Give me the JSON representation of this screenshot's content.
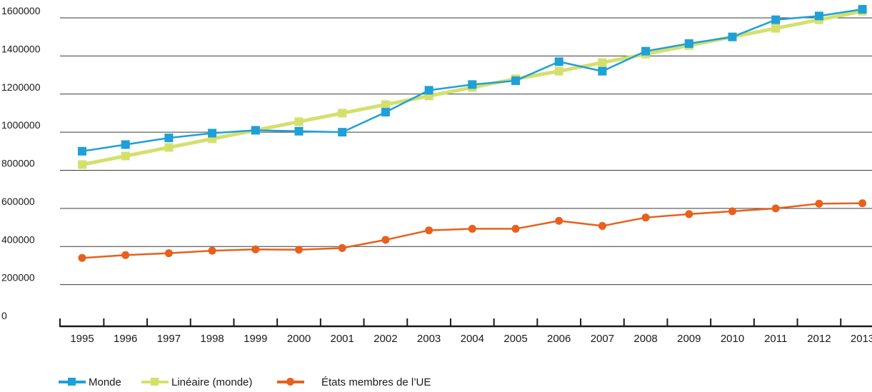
{
  "chart_data": {
    "type": "line",
    "categories": [
      "1995",
      "1996",
      "1997",
      "1998",
      "1999",
      "2000",
      "2001",
      "2002",
      "2003",
      "2004",
      "2005",
      "2006",
      "2007",
      "2008",
      "2009",
      "2010",
      "2011",
      "2012",
      "2013"
    ],
    "ylim": [
      0,
      1600000
    ],
    "yticks": [
      "0",
      "200000",
      "400000",
      "600000",
      "800000",
      "1000000",
      "1200000",
      "1400000",
      "1600000"
    ],
    "grid": true,
    "legend_position": "bottom-left",
    "series": [
      {
        "name": "Linéaire (monde)",
        "color": "#d4e06c",
        "marker": "square",
        "values": [
          830000,
          875000,
          920000,
          965000,
          1010000,
          1055000,
          1100000,
          1145000,
          1190000,
          1235000,
          1280000,
          1320000,
          1365000,
          1410000,
          1455000,
          1500000,
          1545000,
          1590000,
          1635000
        ]
      },
      {
        "name": "Monde",
        "color": "#1fa0d6",
        "marker": "square",
        "values": [
          900000,
          935000,
          970000,
          995000,
          1010000,
          1005000,
          1000000,
          1105000,
          1220000,
          1250000,
          1270000,
          1370000,
          1320000,
          1425000,
          1465000,
          1500000,
          1590000,
          1610000,
          1645000
        ]
      },
      {
        "name": "États membres de l’UE",
        "color": "#e8601c",
        "marker": "circle",
        "values": [
          340000,
          355000,
          365000,
          378000,
          385000,
          383000,
          392000,
          435000,
          485000,
          493000,
          493000,
          535000,
          508000,
          552000,
          570000,
          585000,
          600000,
          625000,
          627000
        ]
      }
    ]
  },
  "legend": [
    {
      "label": "Monde",
      "color": "#1fa0d6",
      "marker": "square"
    },
    {
      "label": "Linéaire (monde)",
      "color": "#d4e06c",
      "marker": "square"
    },
    {
      "label": "États membres de l’UE",
      "color": "#e8601c",
      "marker": "circle"
    }
  ]
}
